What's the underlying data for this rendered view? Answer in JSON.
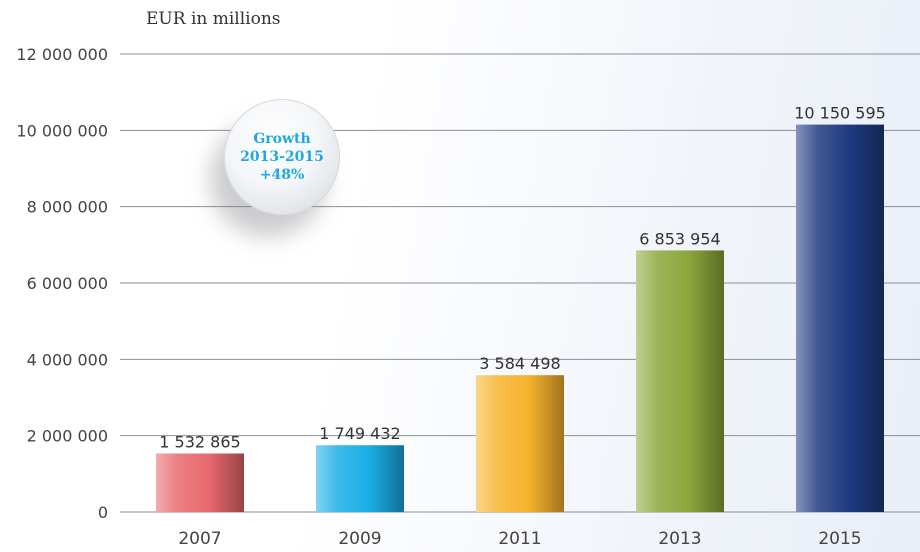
{
  "chart_data": {
    "type": "bar",
    "ylabel": "EUR in millions",
    "categories": [
      "2007",
      "2009",
      "2011",
      "2013",
      "2015"
    ],
    "values": [
      1532865,
      1749432,
      3584498,
      6853954,
      10150595
    ],
    "value_labels": [
      "1 532 865",
      "1 749 432",
      "3 584 498",
      "6 853 954",
      "10 150 595"
    ],
    "ylim": [
      0,
      12000000
    ],
    "yticks": [
      {
        "value": 0,
        "label": "0"
      },
      {
        "value": 2000000,
        "label": "2 000 000"
      },
      {
        "value": 4000000,
        "label": "4 000 000"
      },
      {
        "value": 6000000,
        "label": "6 000 000"
      },
      {
        "value": 8000000,
        "label": "8 000 000"
      },
      {
        "value": 10000000,
        "label": "10 000 000"
      },
      {
        "value": 12000000,
        "label": "12 000 000"
      }
    ],
    "grid": true,
    "colors": [
      "#e8686d",
      "#19aee6",
      "#f7b22d",
      "#8ca63b",
      "#1f3a80"
    ],
    "annotation": {
      "line1": "Growth",
      "line2": "2013-2015",
      "line3": "+48%"
    }
  }
}
